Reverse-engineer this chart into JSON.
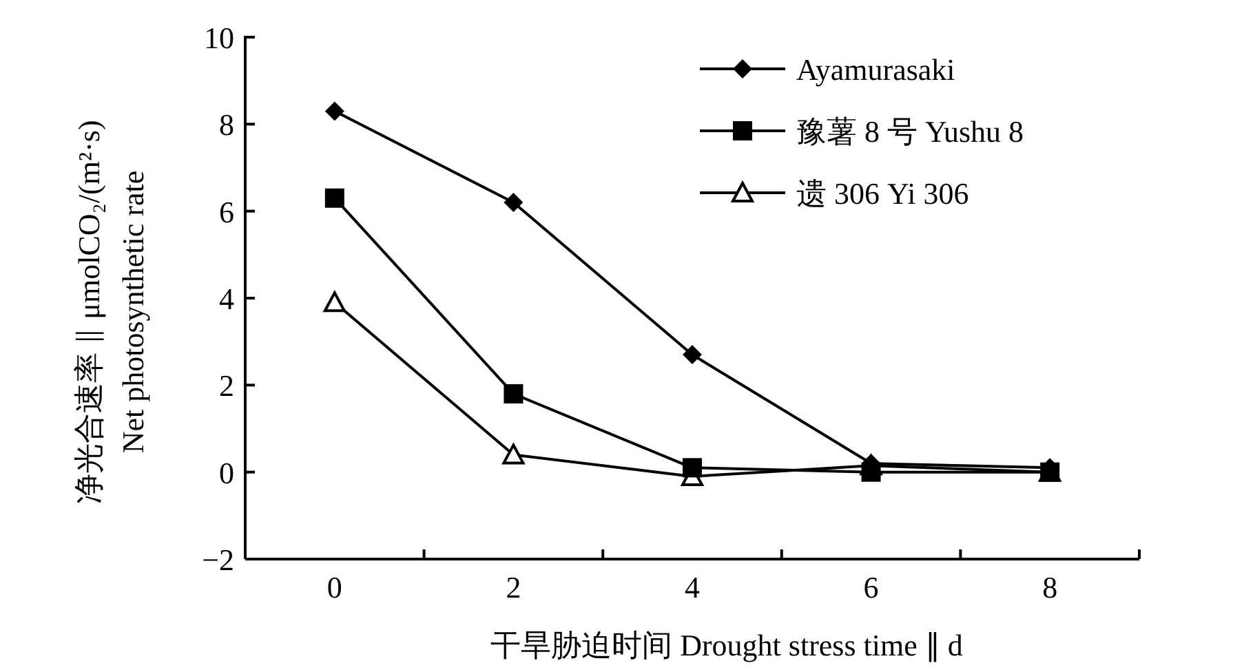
{
  "chart_data": {
    "type": "line",
    "xlabel": "干旱胁迫时间 Drought stress time ∥ d",
    "ylabel": "净光合速率 ∥ μmolCO₂/(m²·s)\nNet photosynthetic rate",
    "x": [
      0,
      2,
      4,
      6,
      8
    ],
    "xlim": [
      -1,
      9
    ],
    "xticks": [
      0,
      {
        "value": 1,
        "label": null
      },
      2,
      {
        "value": 3,
        "label": null
      },
      4,
      {
        "value": 5,
        "label": null
      },
      6,
      {
        "value": 7,
        "label": null
      },
      8,
      {
        "value": 9,
        "label": null
      }
    ],
    "ylim": [
      -2,
      10
    ],
    "yticks": [
      -2,
      0,
      2,
      4,
      6,
      8,
      10
    ],
    "grid": false,
    "legend": "top right",
    "series": [
      {
        "name": "Ayamurasaki",
        "color": "#000000",
        "marker": "diamond",
        "values": [
          8.3,
          6.2,
          2.7,
          0.2,
          0.1
        ]
      },
      {
        "name": "豫薯 8 号 Yushu 8",
        "color": "#000000",
        "marker": "square",
        "values": [
          6.3,
          1.8,
          0.1,
          0.0,
          0.0
        ]
      },
      {
        "name": "遗 306 Yi 306",
        "color": "#000000",
        "marker": "triangle",
        "values": [
          3.9,
          0.4,
          -0.1,
          0.15,
          0.0
        ]
      }
    ]
  }
}
